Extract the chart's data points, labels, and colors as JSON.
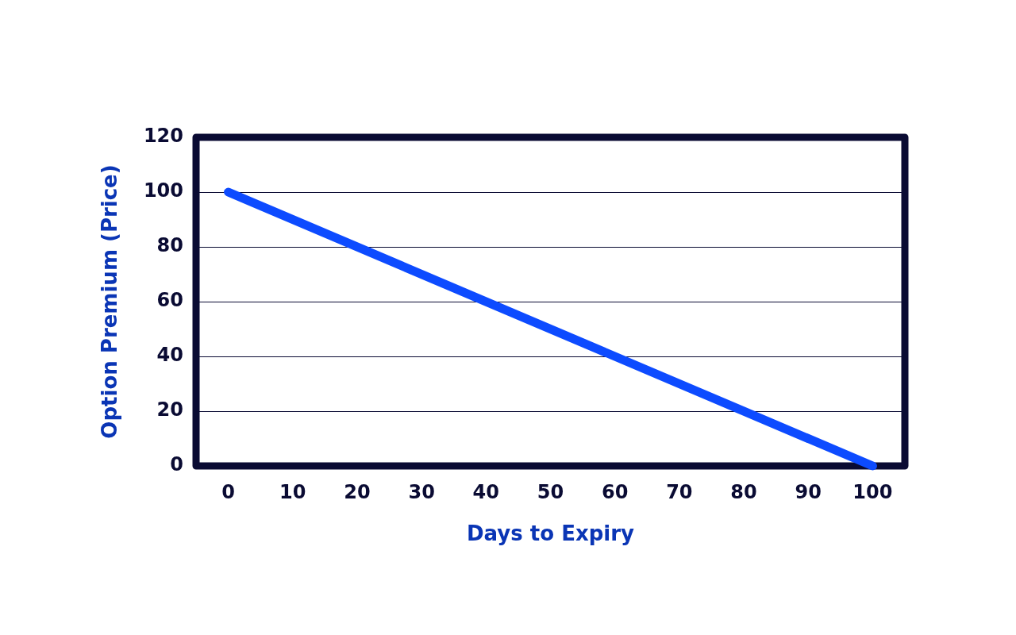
{
  "chart_data": {
    "type": "line",
    "xlabel": "Days to Expiry",
    "ylabel": "Option Premium (Price)",
    "x": [
      0,
      100
    ],
    "series": [
      {
        "color": "#0d4bff",
        "values": [
          100,
          0
        ]
      }
    ],
    "xlim": [
      -5,
      105
    ],
    "xticks": [
      0,
      10,
      20,
      30,
      40,
      50,
      60,
      70,
      80,
      90,
      100
    ],
    "ylim": [
      0,
      120
    ],
    "yticks": [
      0,
      20,
      40,
      60,
      80,
      100,
      120
    ],
    "grid": "y",
    "marker": "none",
    "line_style": "solid"
  }
}
